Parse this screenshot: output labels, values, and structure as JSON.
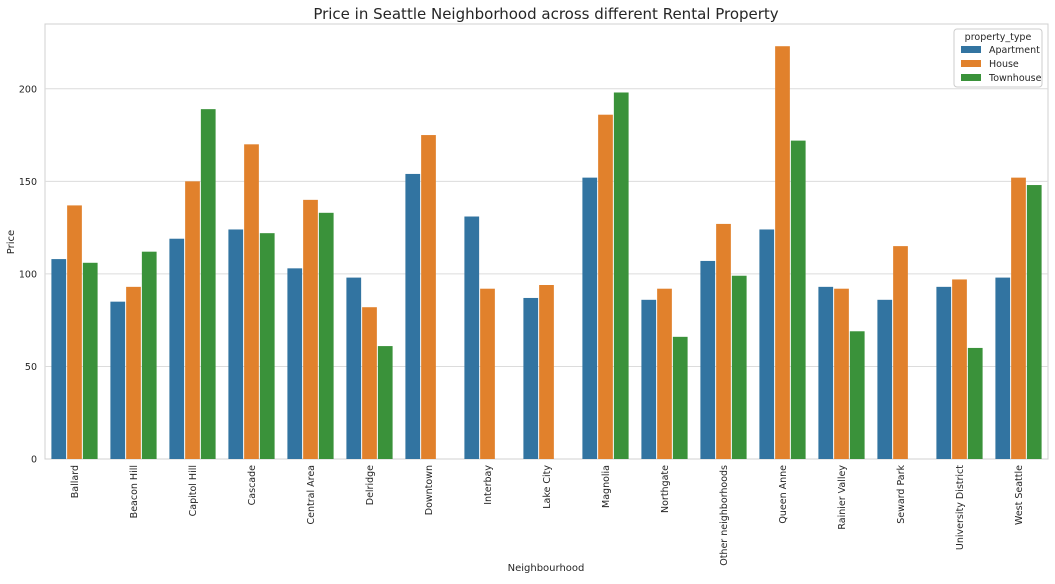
{
  "chart_data": {
    "type": "bar",
    "title": "Price in Seattle Neighborhood across different Rental Property",
    "xlabel": "Neighbourhood",
    "ylabel": "Price",
    "ylim": [
      0,
      235
    ],
    "yticks": [
      0,
      50,
      100,
      150,
      200
    ],
    "grid": true,
    "legend": {
      "title": "property_type",
      "placement": "top-right"
    },
    "categories": [
      "Ballard",
      "Beacon Hill",
      "Capitol Hill",
      "Cascade",
      "Central Area",
      "Delridge",
      "Downtown",
      "Interbay",
      "Lake City",
      "Magnolia",
      "Northgate",
      "Other neighborhoods",
      "Queen Anne",
      "Rainier Valley",
      "Seward Park",
      "University District",
      "West Seattle"
    ],
    "series": [
      {
        "name": "Apartment",
        "color": "#3274a1",
        "values": [
          108,
          85,
          119,
          124,
          103,
          98,
          154,
          131,
          87,
          152,
          86,
          107,
          124,
          93,
          86,
          93,
          98
        ]
      },
      {
        "name": "House",
        "color": "#e1812c",
        "values": [
          137,
          93,
          150,
          170,
          140,
          82,
          175,
          92,
          94,
          186,
          92,
          127,
          223,
          92,
          115,
          97,
          152
        ]
      },
      {
        "name": "Townhouse",
        "color": "#3a923a",
        "values": [
          106,
          112,
          189,
          122,
          133,
          61,
          null,
          null,
          null,
          198,
          66,
          99,
          172,
          69,
          null,
          60,
          148
        ]
      }
    ]
  }
}
